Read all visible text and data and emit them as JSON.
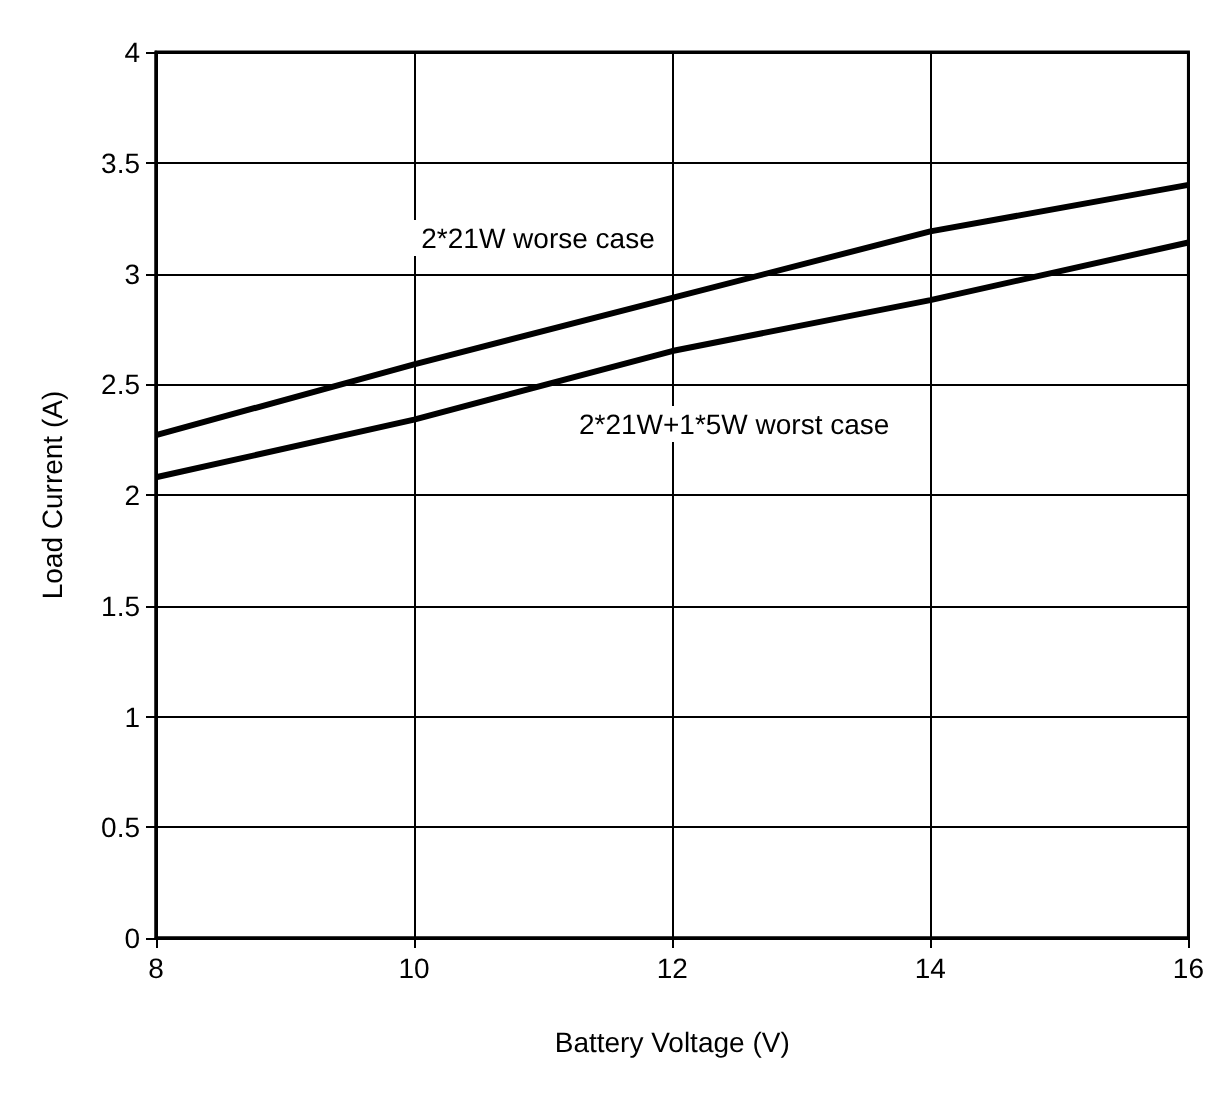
{
  "chart_data": {
    "type": "line",
    "xlabel": "Battery Voltage (V)",
    "ylabel": "Load Current (A)",
    "x": [
      8,
      10,
      12,
      14,
      16
    ],
    "series": [
      {
        "color": "#000000",
        "values": [
          2.27,
          2.59,
          2.89,
          3.19,
          3.4
        ]
      },
      {
        "color": "#000000",
        "values": [
          2.08,
          2.34,
          2.65,
          2.88,
          3.14
        ]
      }
    ],
    "annotations": [
      "2*21W worse case",
      "2*21W+1*5W worst case"
    ],
    "xlim": [
      8,
      16
    ],
    "xticks": [
      8,
      10,
      12,
      14,
      16
    ],
    "ylim": [
      0,
      4
    ],
    "yticks": [
      0,
      0.5,
      1,
      1.5,
      2,
      2.5,
      3,
      3.5,
      4
    ],
    "grid": true,
    "marker": "none",
    "line_style": "solid"
  }
}
